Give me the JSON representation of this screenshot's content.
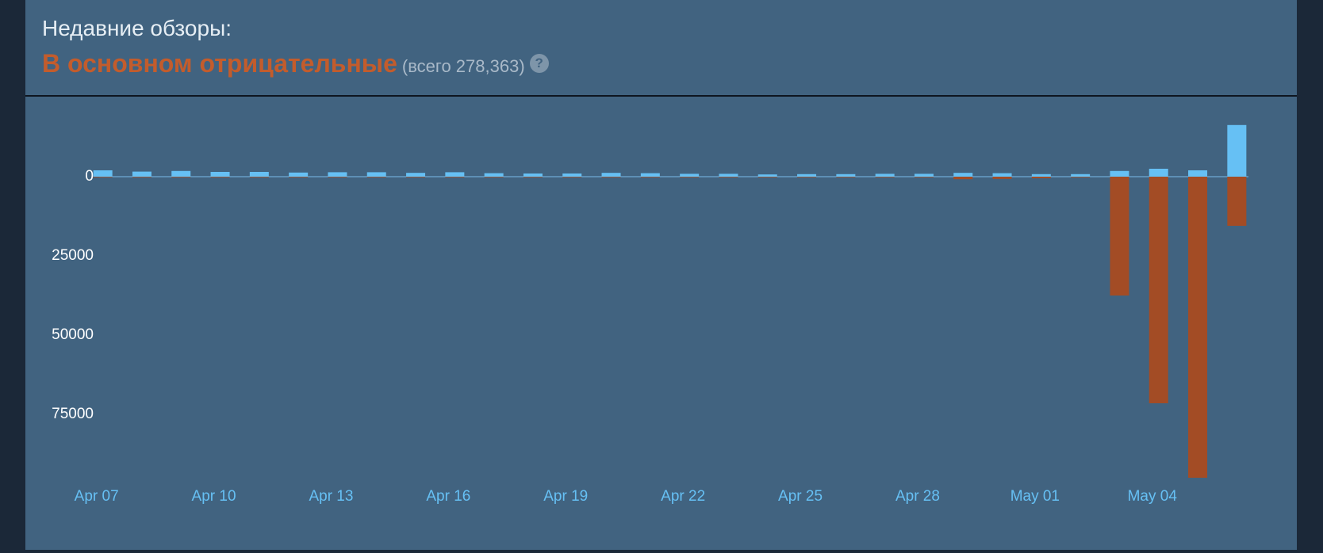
{
  "header": {
    "title": "Недавние обзоры:",
    "summary": "В основном отрицательные",
    "total": "(всего 278,363)",
    "help_icon": "?"
  },
  "chart_data": {
    "type": "bar",
    "categories": [
      "Apr 07",
      null,
      null,
      "Apr 10",
      null,
      null,
      "Apr 13",
      null,
      null,
      "Apr 16",
      null,
      null,
      "Apr 19",
      null,
      null,
      "Apr 22",
      null,
      null,
      "Apr 25",
      null,
      null,
      "Apr 28",
      null,
      null,
      "May 01",
      null,
      null,
      "May 04",
      null,
      null
    ],
    "series": [
      {
        "color": "#66c0f4",
        "values": [
          2000,
          1600,
          1800,
          1500,
          1500,
          1300,
          1400,
          1400,
          1200,
          1400,
          1100,
          1000,
          1000,
          1200,
          1100,
          900,
          900,
          700,
          800,
          800,
          900,
          900,
          1200,
          1100,
          800,
          800,
          1800,
          2500,
          2000,
          16300
        ]
      },
      {
        "color": "#a34c25",
        "values": [
          -200,
          -200,
          -200,
          -200,
          -200,
          -200,
          -200,
          -200,
          -200,
          -200,
          -200,
          -200,
          -200,
          -200,
          -200,
          -200,
          -200,
          -200,
          -200,
          -200,
          -200,
          -200,
          -800,
          -700,
          -500,
          -200,
          -37500,
          -71500,
          -95000,
          -15500
        ]
      }
    ],
    "ylim": [
      -100000,
      20000
    ],
    "yticks": [
      0,
      {
        "value": -25000,
        "label": "25000"
      },
      {
        "value": -50000,
        "label": "50000"
      },
      {
        "value": -75000,
        "label": "75000"
      }
    ],
    "grid": false
  }
}
